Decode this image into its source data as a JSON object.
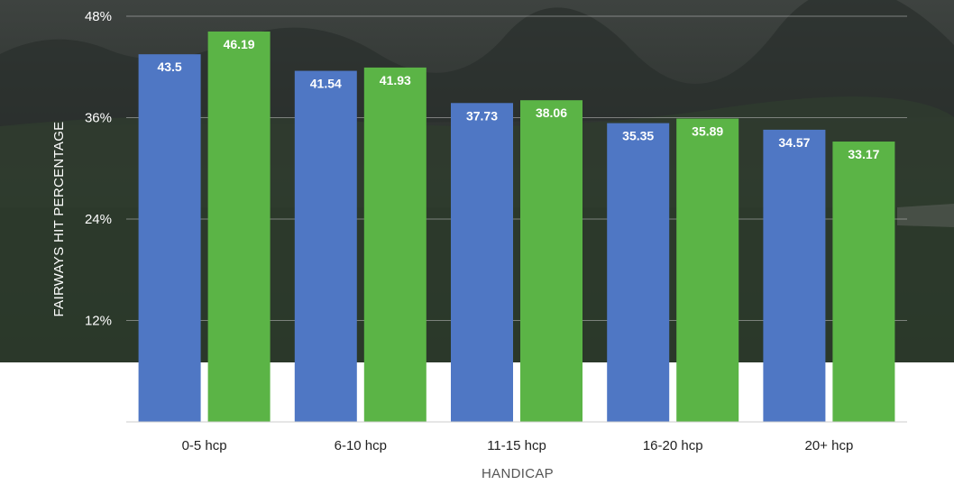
{
  "chart_data": {
    "type": "bar",
    "categories": [
      "0-5 hcp",
      "6-10 hcp",
      "11-15 hcp",
      "16-20 hcp",
      "20+ hcp"
    ],
    "series": [
      {
        "values": [
          43.5,
          41.54,
          37.73,
          35.35,
          34.57
        ],
        "color": "#4f77c4"
      },
      {
        "values": [
          46.19,
          41.93,
          38.06,
          35.89,
          33.17
        ],
        "color": "#5bb446"
      }
    ],
    "data_labels": [
      [
        "43.5",
        "41.54",
        "37.73",
        "35.35",
        "34.57"
      ],
      [
        "46.19",
        "41.93",
        "38.06",
        "35.89",
        "33.17"
      ]
    ],
    "ylabel": "FAIRWAYS HIT PERCENTAGE",
    "xlabel": "HANDICAP",
    "ylim": [
      0,
      48
    ],
    "yticks": [
      12,
      24,
      36,
      48
    ],
    "ytick_labels": [
      "12%",
      "24%",
      "36%",
      "48%"
    ],
    "grid": true,
    "legend": "none",
    "background": "dark golf course photo"
  }
}
